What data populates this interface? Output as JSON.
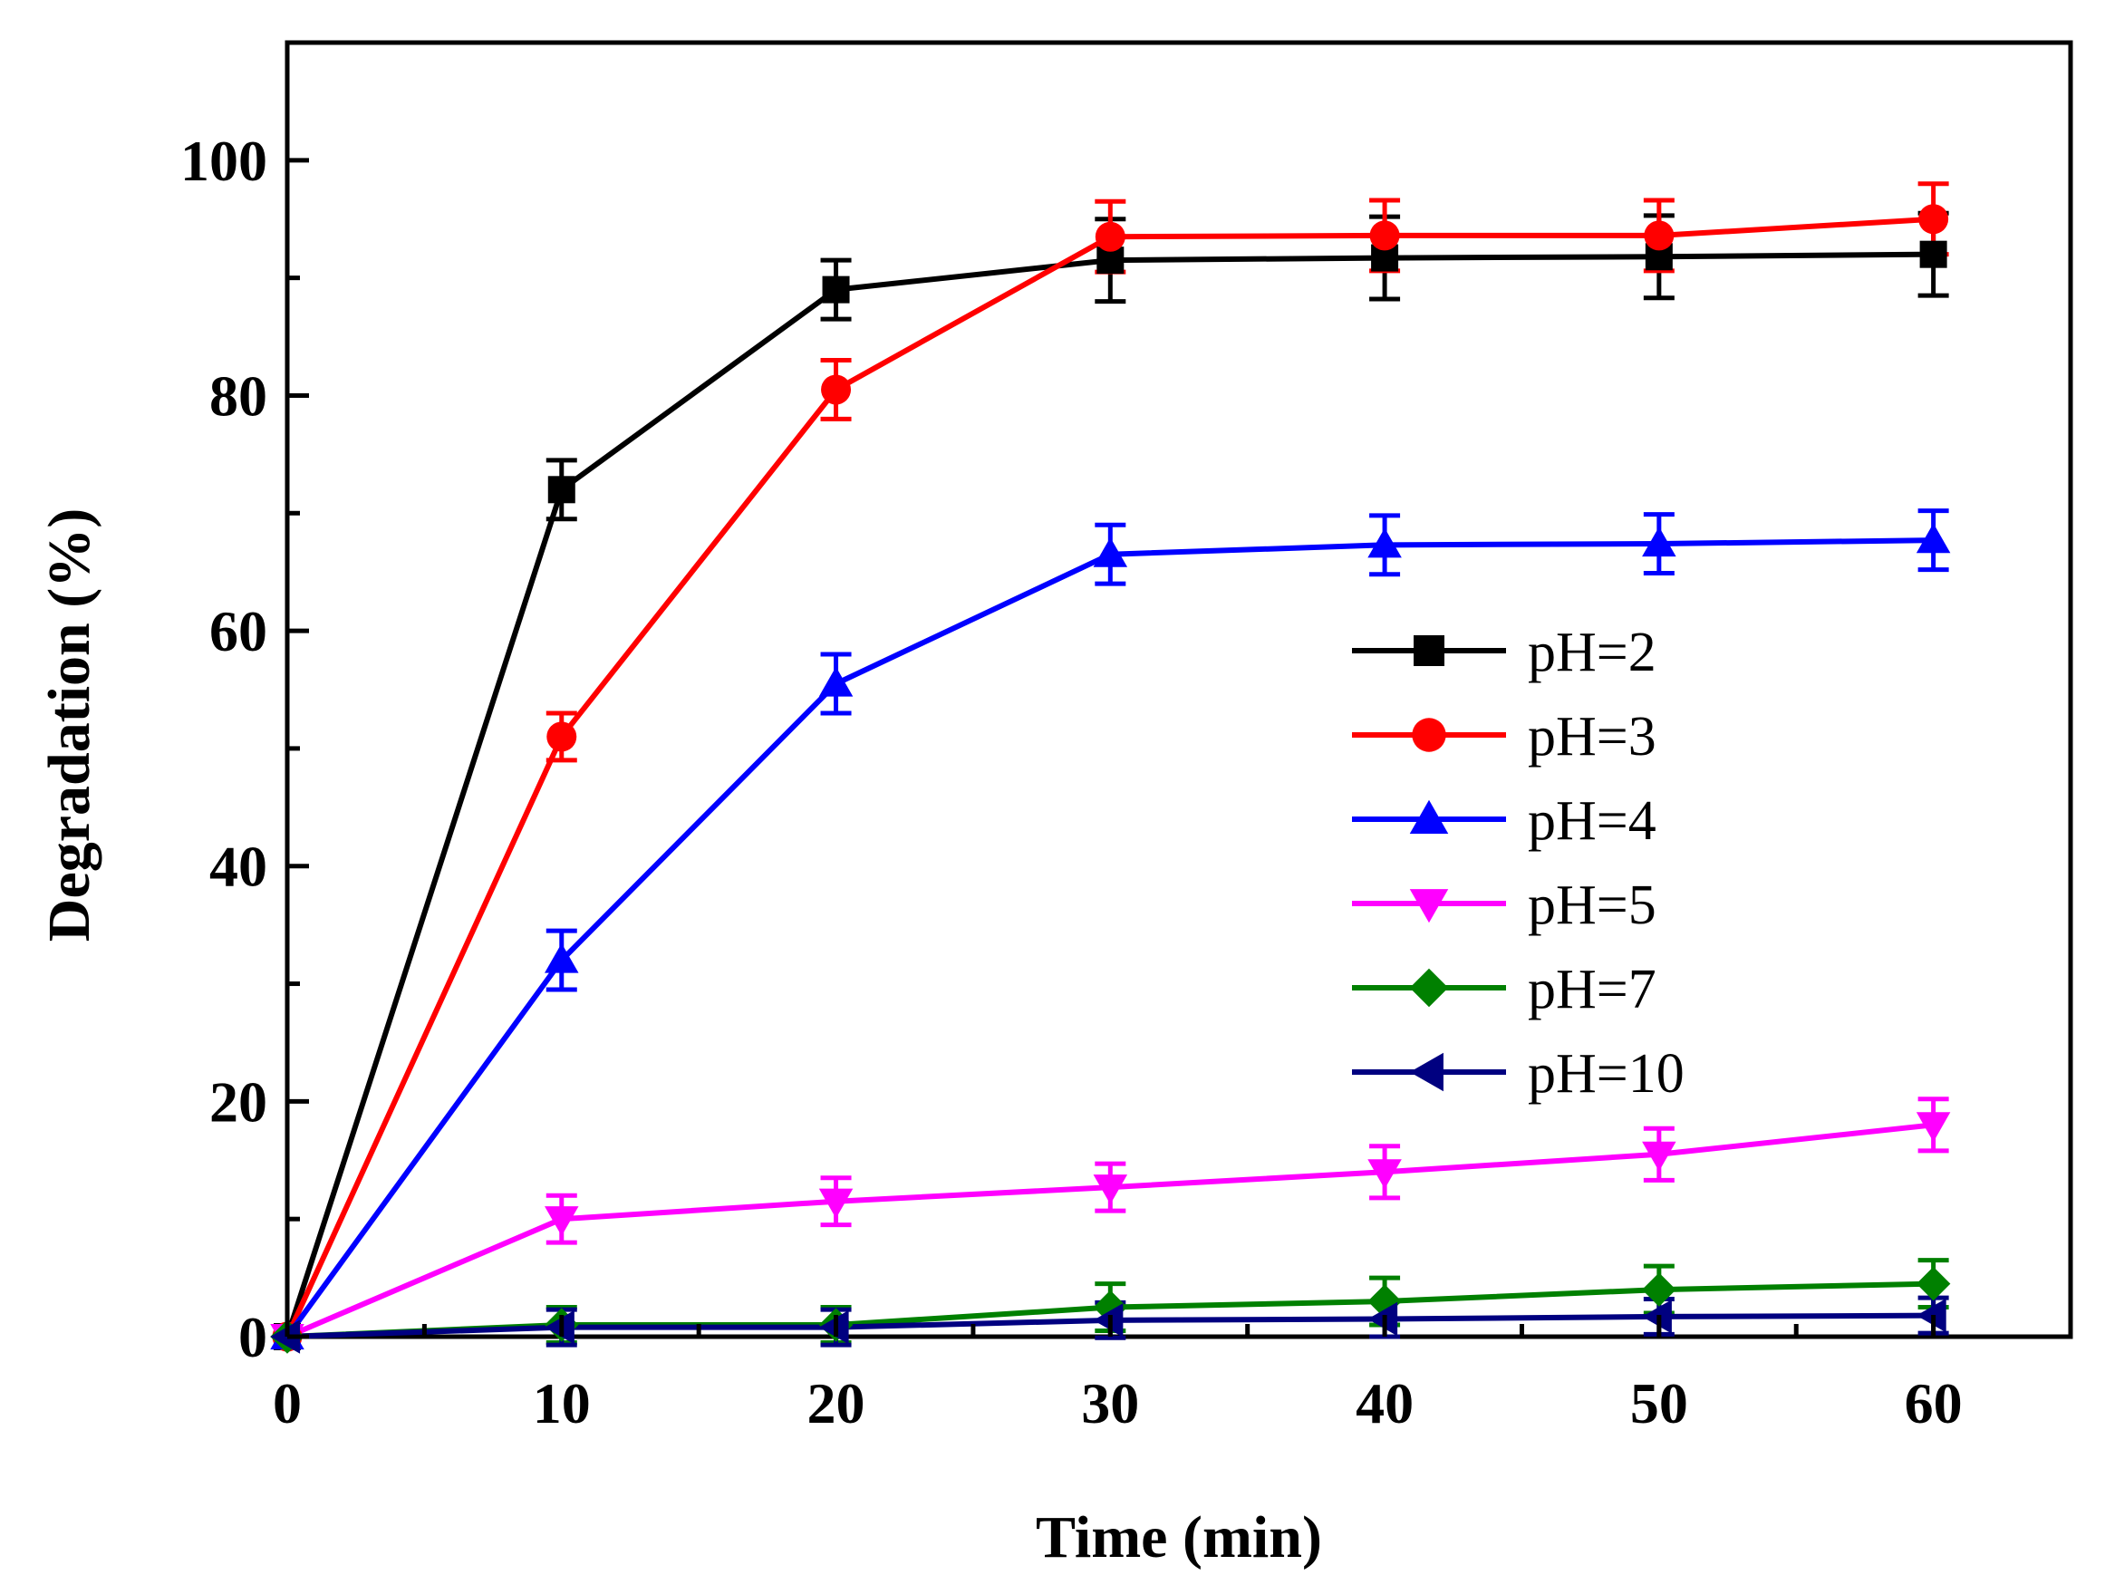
{
  "chart_data": {
    "type": "line",
    "xlabel": "Time (min)",
    "ylabel": "Degradation (%)",
    "xlim": [
      0,
      65
    ],
    "ylim": [
      0,
      110
    ],
    "xticks": [
      0,
      10,
      20,
      30,
      40,
      50,
      60
    ],
    "yticks": [
      0,
      20,
      40,
      60,
      80,
      100
    ],
    "grid": false,
    "legend_position": "center-right",
    "x": [
      0,
      10,
      20,
      30,
      40,
      50,
      60
    ],
    "series": [
      {
        "name": "pH=2",
        "color": "#000000",
        "marker": "square",
        "values": [
          0,
          72,
          89,
          91.5,
          91.7,
          91.8,
          92
        ],
        "errors": [
          0,
          2.5,
          2.5,
          3.5,
          3.5,
          3.5,
          3.5
        ]
      },
      {
        "name": "pH=3",
        "color": "#ff0000",
        "marker": "circle",
        "values": [
          0,
          51,
          80.5,
          93.5,
          93.6,
          93.6,
          95
        ],
        "errors": [
          0,
          2,
          2.5,
          3,
          3,
          3,
          3
        ]
      },
      {
        "name": "pH=4",
        "color": "#0000ff",
        "marker": "triangle-up",
        "values": [
          0,
          32,
          55.5,
          66.5,
          67.3,
          67.4,
          67.7
        ],
        "errors": [
          0,
          2.5,
          2.5,
          2.5,
          2.5,
          2.5,
          2.5
        ]
      },
      {
        "name": "pH=5",
        "color": "#ff00ff",
        "marker": "triangle-down",
        "values": [
          0,
          10,
          11.5,
          12.7,
          14,
          15.5,
          18
        ],
        "errors": [
          0,
          2,
          2,
          2,
          2.2,
          2.2,
          2.2
        ]
      },
      {
        "name": "pH=7",
        "color": "#008000",
        "marker": "diamond",
        "values": [
          0,
          1,
          1,
          2.5,
          3,
          4,
          4.5
        ],
        "errors": [
          0,
          1.5,
          1.5,
          2,
          2,
          2,
          2
        ]
      },
      {
        "name": "pH=10",
        "color": "#000080",
        "marker": "triangle-left",
        "values": [
          0,
          0.8,
          0.8,
          1.4,
          1.5,
          1.7,
          1.8
        ],
        "errors": [
          0,
          1.5,
          1.5,
          1.5,
          1.5,
          1.5,
          1.5
        ]
      }
    ]
  }
}
